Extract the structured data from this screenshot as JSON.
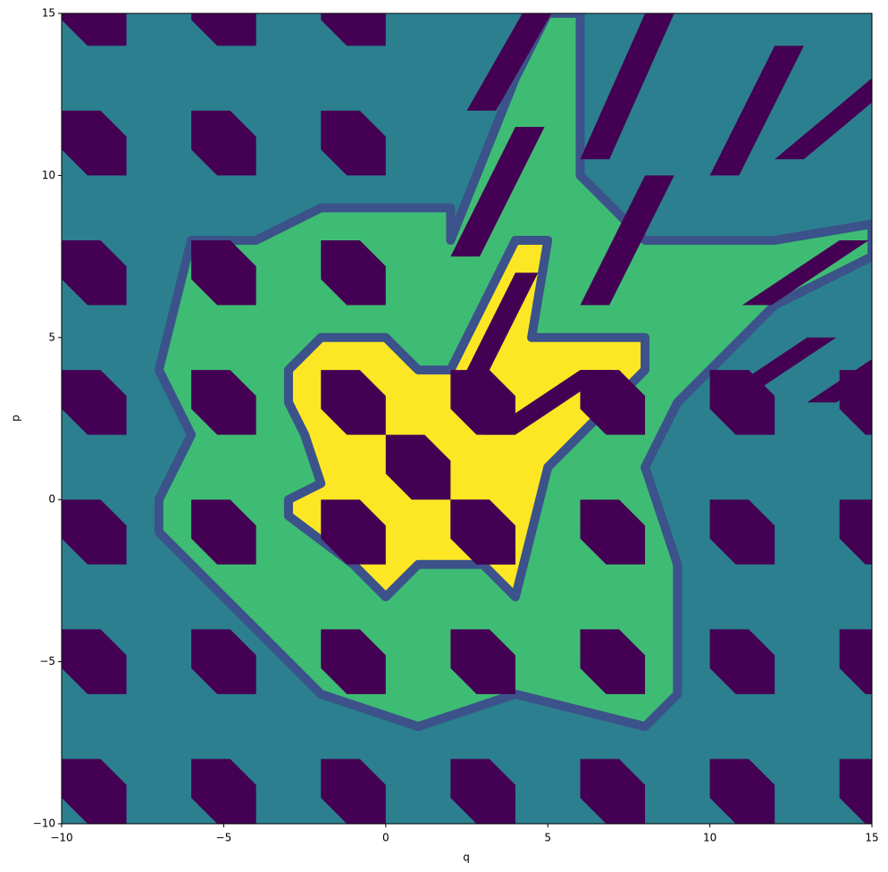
{
  "chart_data": {
    "type": "heatmap",
    "colormap": "viridis",
    "xlabel": "q",
    "ylabel": "p",
    "xlim": [
      -10,
      15
    ],
    "ylim": [
      -10,
      15
    ],
    "xticks": [
      {
        "value": -10,
        "label": "−10"
      },
      {
        "value": -5,
        "label": "−5"
      },
      0,
      5,
      10,
      15
    ],
    "yticks": [
      {
        "value": -10,
        "label": "−10"
      },
      {
        "value": -5,
        "label": "−5"
      },
      0,
      5,
      10,
      15
    ]
  }
}
